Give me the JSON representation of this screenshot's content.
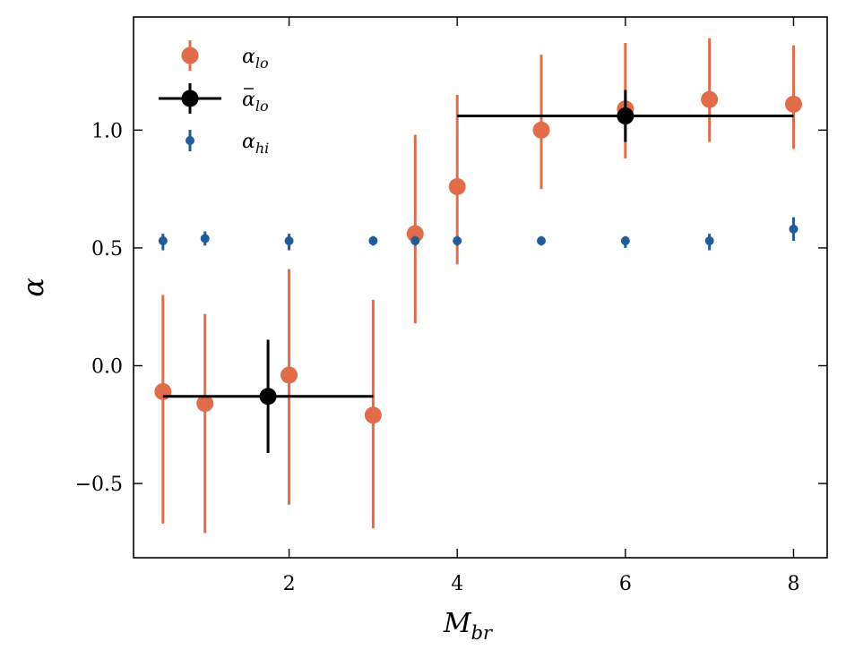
{
  "chart_data": {
    "type": "scatter",
    "xlabel": "M",
    "xlabel_sub": "br",
    "ylabel": "α",
    "xlim": [
      0.15,
      8.4
    ],
    "ylim": [
      -0.815,
      1.48
    ],
    "xticks": [
      2,
      4,
      6,
      8
    ],
    "xtick_labels": [
      "2",
      "4",
      "6",
      "8"
    ],
    "yticks": [
      -0.5,
      0.0,
      0.5,
      1.0
    ],
    "ytick_labels": [
      "−0.5",
      "0.0",
      "0.5",
      "1.0"
    ],
    "grid": false,
    "legend_position": "top-left",
    "colors": {
      "alpha_lo": "#e06c4a",
      "alpha_lo_mean": "#000000",
      "alpha_hi": "#1f5c99"
    },
    "legend": [
      {
        "key": "alpha_lo",
        "symbol": "α",
        "sub": "lo",
        "overbar": false
      },
      {
        "key": "alpha_lo_mean",
        "symbol": "α",
        "sub": "lo",
        "overbar": true
      },
      {
        "key": "alpha_hi",
        "symbol": "α",
        "sub": "hi",
        "overbar": false
      }
    ],
    "series": [
      {
        "key": "alpha_lo",
        "x": [
          0.5,
          1.0,
          2.0,
          3.0,
          3.5,
          4.0,
          5.0,
          6.0,
          7.0,
          8.0
        ],
        "y": [
          -0.11,
          -0.16,
          -0.04,
          -0.21,
          0.56,
          0.76,
          1.0,
          1.09,
          1.13,
          1.11
        ],
        "yerr_low": [
          -0.67,
          -0.71,
          -0.59,
          -0.69,
          0.18,
          0.43,
          0.75,
          0.88,
          0.95,
          0.92
        ],
        "yerr_high": [
          0.3,
          0.22,
          0.41,
          0.28,
          0.98,
          1.15,
          1.32,
          1.37,
          1.39,
          1.36
        ]
      },
      {
        "key": "alpha_lo_mean",
        "x": [
          1.75,
          6.0
        ],
        "y": [
          -0.13,
          1.06
        ],
        "xerr_low": [
          0.5,
          4.0
        ],
        "xerr_high": [
          3.0,
          8.0
        ],
        "yerr_low": [
          -0.37,
          0.95
        ],
        "yerr_high": [
          0.11,
          1.17
        ]
      },
      {
        "key": "alpha_hi",
        "x": [
          0.5,
          1.0,
          2.0,
          3.0,
          3.5,
          4.0,
          5.0,
          6.0,
          7.0,
          8.0
        ],
        "y": [
          0.53,
          0.54,
          0.53,
          0.53,
          0.53,
          0.53,
          0.53,
          0.53,
          0.53,
          0.58
        ],
        "yerr_low": [
          0.49,
          0.51,
          0.49,
          0.51,
          0.51,
          0.51,
          0.51,
          0.5,
          0.49,
          0.53
        ],
        "yerr_high": [
          0.56,
          0.57,
          0.56,
          0.55,
          0.55,
          0.55,
          0.55,
          0.55,
          0.56,
          0.63
        ]
      }
    ]
  }
}
